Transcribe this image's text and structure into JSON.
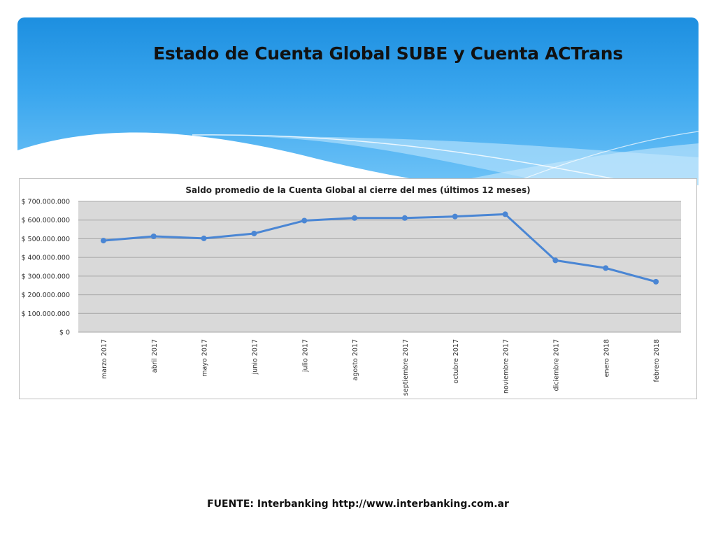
{
  "slide": {
    "title": "Estado de Cuenta Global SUBE y Cuenta ACTrans",
    "source": "FUENTE: Interbanking http://www.interbanking.com.ar"
  },
  "colors": {
    "banner_top": "#1d8fe0",
    "banner_bottom": "#6fc3f7",
    "plot_area": "#d9d9d9",
    "series_line": "#4a86d4"
  },
  "chart_data": {
    "type": "line",
    "title": "Saldo promedio de la Cuenta Global al cierre del mes (últimos 12 meses)",
    "xlabel": "",
    "ylabel": "",
    "ylim": [
      0,
      700000000
    ],
    "y_ticks": [
      0,
      100000000,
      200000000,
      300000000,
      400000000,
      500000000,
      600000000,
      700000000
    ],
    "y_tick_labels": [
      "$ 0",
      "$ 100.000.000",
      "$ 200.000.000",
      "$ 300.000.000",
      "$ 400.000.000",
      "$ 500.000.000",
      "$ 600.000.000",
      "$ 700.000.000"
    ],
    "categories": [
      "marzo 2017",
      "abril 2017",
      "mayo 2017",
      "junio 2017",
      "julio 2017",
      "agosto 2017",
      "septiembre 2017",
      "octubre 2017",
      "noviembre 2017",
      "diciembre 2017",
      "enero 2018",
      "febrero 2018"
    ],
    "series": [
      {
        "values": [
          490000000,
          513000000,
          502000000,
          528000000,
          597000000,
          611000000,
          611000000,
          619000000,
          631000000,
          384000000,
          343000000,
          270000000
        ]
      }
    ],
    "grid": true,
    "legend": "none"
  }
}
